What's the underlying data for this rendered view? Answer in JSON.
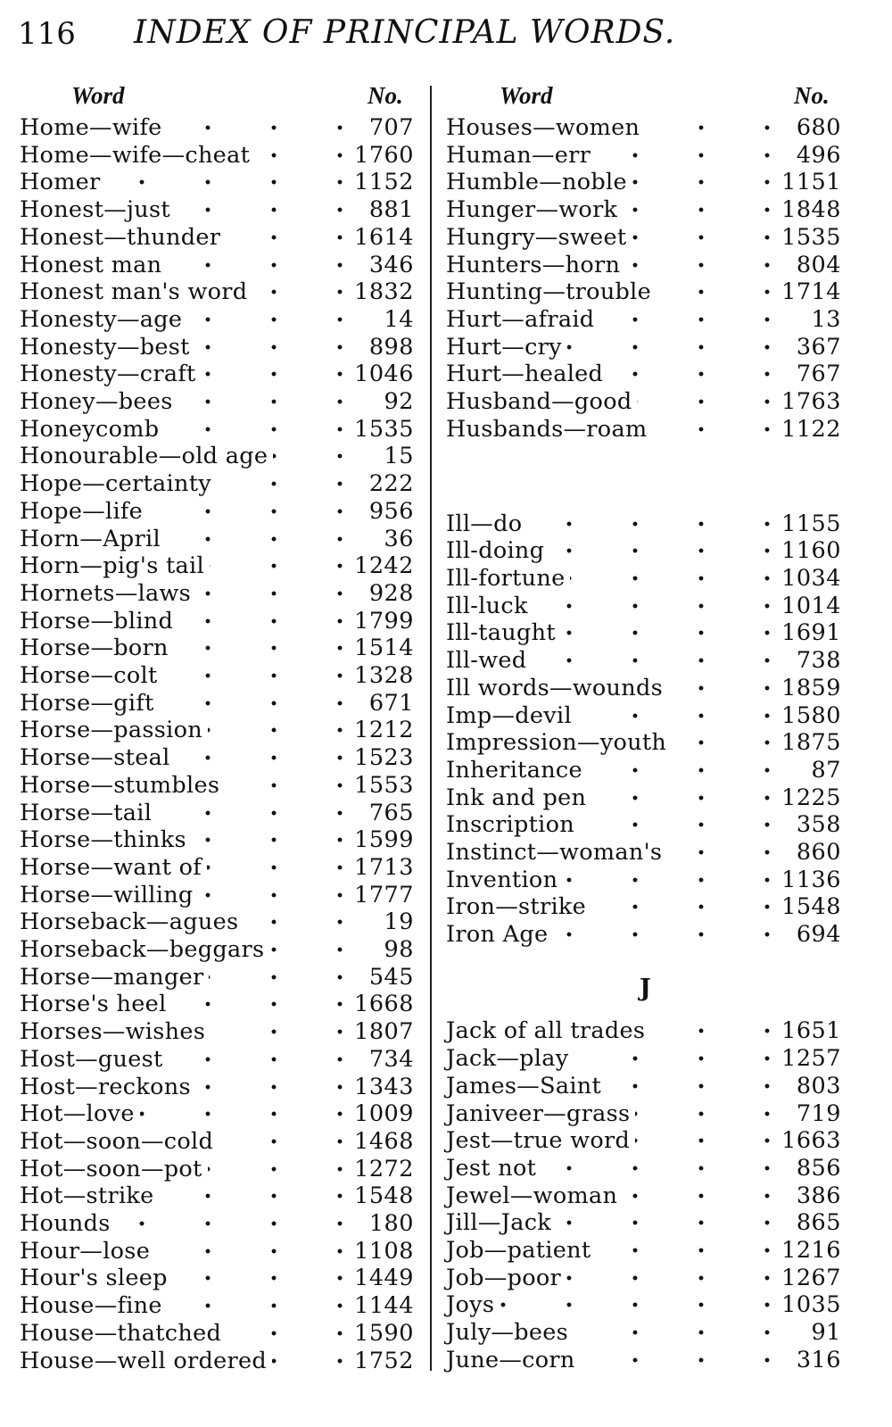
{
  "header": {
    "page_number": "116",
    "title": "INDEX OF PRINCIPAL WORDS."
  },
  "columns": {
    "word_label": "Word",
    "number_label": "No."
  },
  "left": [
    [
      "Home—wife",
      "707"
    ],
    [
      "Home—wife—cheat",
      "1760"
    ],
    [
      "Homer",
      "1152"
    ],
    [
      "Honest—just",
      "881"
    ],
    [
      "Honest—thunder",
      "1614"
    ],
    [
      "Honest man",
      "346"
    ],
    [
      "Honest man's word",
      "1832"
    ],
    [
      "Honesty—age",
      "14"
    ],
    [
      "Honesty—best",
      "898"
    ],
    [
      "Honesty—craft",
      "1046"
    ],
    [
      "Honey—bees",
      "92"
    ],
    [
      "Honeycomb",
      "1535"
    ],
    [
      "Honourable—old age",
      "15"
    ],
    [
      "Hope—certainty",
      "222"
    ],
    [
      "Hope—life",
      "956"
    ],
    [
      "Horn—April",
      "36"
    ],
    [
      "Horn—pig's tail",
      "1242"
    ],
    [
      "Hornets—laws",
      "928"
    ],
    [
      "Horse—blind",
      "1799"
    ],
    [
      "Horse—born",
      "1514"
    ],
    [
      "Horse—colt",
      "1328"
    ],
    [
      "Horse—gift",
      "671"
    ],
    [
      "Horse—passion",
      "1212"
    ],
    [
      "Horse—steal",
      "1523"
    ],
    [
      "Horse—stumbles",
      "1553"
    ],
    [
      "Horse—tail",
      "765"
    ],
    [
      "Horse—thinks",
      "1599"
    ],
    [
      "Horse—want of",
      "1713"
    ],
    [
      "Horse—willing",
      "1777"
    ],
    [
      "Horseback—agues",
      "19"
    ],
    [
      "Horseback—beggars",
      "98"
    ],
    [
      "Horse—manger",
      "545"
    ],
    [
      "Horse's heel",
      "1668"
    ],
    [
      "Horses—wishes",
      "1807"
    ],
    [
      "Host—guest",
      "734"
    ],
    [
      "Host—reckons",
      "1343"
    ],
    [
      "Hot—love",
      "1009"
    ],
    [
      "Hot—soon—cold",
      "1468"
    ],
    [
      "Hot—soon—pot",
      "1272"
    ],
    [
      "Hot—strike",
      "1548"
    ],
    [
      "Hounds",
      "180"
    ],
    [
      "Hour—lose",
      "1108"
    ],
    [
      "Hour's sleep",
      "1449"
    ],
    [
      "House—fine",
      "1144"
    ],
    [
      "House—thatched",
      "1590"
    ],
    [
      "House—well ordered",
      "1752"
    ]
  ],
  "right": {
    "h_entries": [
      [
        "Houses—women",
        "680"
      ],
      [
        "Human—err",
        "496"
      ],
      [
        "Humble—noble",
        "1151"
      ],
      [
        "Hunger—work",
        "1848"
      ],
      [
        "Hungry—sweet",
        "1535"
      ],
      [
        "Hunters—horn",
        "804"
      ],
      [
        "Hunting—trouble",
        "1714"
      ],
      [
        "Hurt—afraid",
        "13"
      ],
      [
        "Hurt—cry",
        "367"
      ],
      [
        "Hurt—healed",
        "767"
      ],
      [
        "Husband—good",
        "1763"
      ],
      [
        "Husbands—roam",
        "1122"
      ]
    ],
    "i_entries": [
      [
        "Ill—do",
        "1155"
      ],
      [
        "Ill-doing",
        "1160"
      ],
      [
        "Ill-fortune",
        "1034"
      ],
      [
        "Ill-luck",
        "1014"
      ],
      [
        "Ill-taught",
        "1691"
      ],
      [
        "Ill-wed",
        "738"
      ],
      [
        "Ill words—wounds",
        "1859"
      ],
      [
        "Imp—devil",
        "1580"
      ],
      [
        "Impression—youth",
        "1875"
      ],
      [
        "Inheritance",
        "87"
      ],
      [
        "Ink and pen",
        "1225"
      ],
      [
        "Inscription",
        "358"
      ],
      [
        "Instinct—woman's",
        "860"
      ],
      [
        "Invention",
        "1136"
      ],
      [
        "Iron—strike",
        "1548"
      ],
      [
        "Iron Age",
        "694"
      ]
    ],
    "j_heading": "J",
    "j_entries": [
      [
        "Jack of all trades",
        "1651"
      ],
      [
        "Jack—play",
        "1257"
      ],
      [
        "James—Saint",
        "803"
      ],
      [
        "Janiveer—grass",
        "719"
      ],
      [
        "Jest—true word",
        "1663"
      ],
      [
        "Jest not",
        "856"
      ],
      [
        "Jewel—woman",
        "386"
      ],
      [
        "Jill—Jack",
        "865"
      ],
      [
        "Job—patient",
        "1216"
      ],
      [
        "Job—poor",
        "1267"
      ],
      [
        "Joys",
        "1035"
      ],
      [
        "July—bees",
        "91"
      ],
      [
        "June—corn",
        "316"
      ]
    ]
  }
}
